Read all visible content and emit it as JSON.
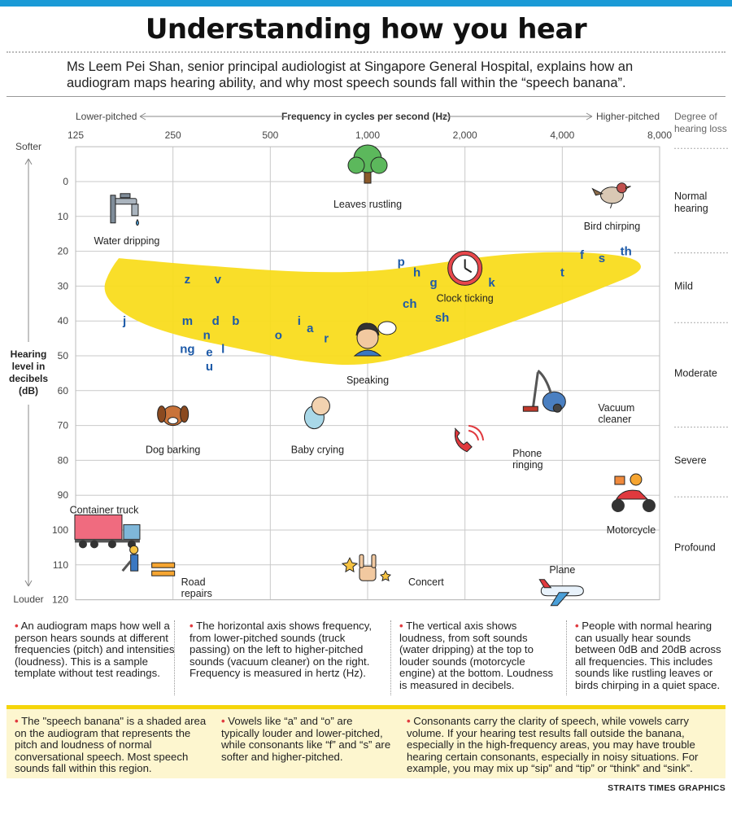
{
  "header": {
    "title": "Understanding how you hear",
    "intro": "Ms Leem Pei Shan, senior principal audiologist at Singapore General Hospital, explains how an audiogram maps hearing ability, and why most speech sounds fall within the “speech banana”."
  },
  "colors": {
    "accent_blue": "#1a9ad6",
    "banana_yellow": "#f9dc1e",
    "bullet_red": "#e0393e",
    "letter_blue": "#1d5aa8",
    "note_background": "#fdf6cf"
  },
  "chart_data": {
    "type": "scatter",
    "title": "Frequency in cycles per second (Hz)",
    "x_left_label": "Lower-pitched",
    "x_right_label": "Higher-pitched",
    "x_scale": "log",
    "x_ticks": [
      125,
      250,
      500,
      1000,
      2000,
      4000,
      8000
    ],
    "x_tick_labels": [
      "125",
      "250",
      "500",
      "1,000",
      "2,000",
      "4,000",
      "8,000"
    ],
    "y_label_lines": [
      "Hearing",
      "level in",
      "decibels",
      "(dB)"
    ],
    "y_top_label": "Softer",
    "y_bottom_label": "Louder",
    "y_ticks": [
      0,
      10,
      20,
      30,
      40,
      50,
      60,
      70,
      80,
      90,
      100,
      110,
      120
    ],
    "y_range": [
      -10,
      120
    ],
    "y_inverted": true,
    "grid": true,
    "degree_header": [
      "Degree of",
      "hearing loss"
    ],
    "degrees": [
      {
        "lines": [
          "Normal",
          "hearing"
        ],
        "at": 6
      },
      {
        "lines": [
          "Mild"
        ],
        "at": 30
      },
      {
        "lines": [
          "Moderate"
        ],
        "at": 55
      },
      {
        "lines": [
          "Severe"
        ],
        "at": 80
      },
      {
        "lines": [
          "Profound"
        ],
        "at": 105
      }
    ],
    "degree_boundaries": [
      -10,
      20,
      40,
      70,
      90
    ],
    "speech_banana": {
      "label": "speech banana",
      "upper_edge": [
        [
          170,
          22
        ],
        [
          300,
          24
        ],
        [
          600,
          26
        ],
        [
          1000,
          26
        ],
        [
          1500,
          24
        ],
        [
          2500,
          21
        ],
        [
          4000,
          20
        ],
        [
          6000,
          21
        ],
        [
          7000,
          23
        ]
      ],
      "lower_edge": [
        [
          7000,
          26
        ],
        [
          5500,
          30
        ],
        [
          4000,
          35
        ],
        [
          2500,
          42
        ],
        [
          1600,
          48
        ],
        [
          1000,
          53
        ],
        [
          650,
          52
        ],
        [
          400,
          48
        ],
        [
          250,
          44
        ],
        [
          180,
          39
        ],
        [
          150,
          32
        ],
        [
          160,
          25
        ]
      ]
    },
    "speech_sounds": [
      {
        "text": "z",
        "x": 277,
        "y": 28
      },
      {
        "text": "v",
        "x": 344,
        "y": 28
      },
      {
        "text": "j",
        "x": 177,
        "y": 40
      },
      {
        "text": "m",
        "x": 277,
        "y": 40
      },
      {
        "text": "d",
        "x": 339,
        "y": 40
      },
      {
        "text": "b",
        "x": 391,
        "y": 40
      },
      {
        "text": "n",
        "x": 318,
        "y": 44
      },
      {
        "text": "ng",
        "x": 277,
        "y": 48
      },
      {
        "text": "e",
        "x": 324,
        "y": 49
      },
      {
        "text": "l",
        "x": 357,
        "y": 48
      },
      {
        "text": "u",
        "x": 324,
        "y": 53
      },
      {
        "text": "o",
        "x": 530,
        "y": 44
      },
      {
        "text": "i",
        "x": 614,
        "y": 40
      },
      {
        "text": "a",
        "x": 664,
        "y": 42
      },
      {
        "text": "r",
        "x": 745,
        "y": 45
      },
      {
        "text": "p",
        "x": 1270,
        "y": 23
      },
      {
        "text": "h",
        "x": 1420,
        "y": 26
      },
      {
        "text": "g",
        "x": 1600,
        "y": 29
      },
      {
        "text": "ch",
        "x": 1350,
        "y": 35
      },
      {
        "text": "sh",
        "x": 1700,
        "y": 39
      },
      {
        "text": "k",
        "x": 2420,
        "y": 29
      },
      {
        "text": "t",
        "x": 4000,
        "y": 26
      },
      {
        "text": "f",
        "x": 4600,
        "y": 21
      },
      {
        "text": "s",
        "x": 5300,
        "y": 22
      },
      {
        "text": "th",
        "x": 6300,
        "y": 20
      }
    ],
    "sound_examples": [
      {
        "label": "Leaves rustling",
        "icon": "tree-icon",
        "x": 1000,
        "y": 0
      },
      {
        "label": "Water dripping",
        "icon": "tap-icon",
        "x": 180,
        "y": 10
      },
      {
        "label": "Bird chirping",
        "icon": "bird-icon",
        "x": 5700,
        "y": 10
      },
      {
        "label": "Clock ticking",
        "icon": "clock-icon",
        "x": 2000,
        "y": 30
      },
      {
        "label": "Speaking",
        "icon": "speaking-person-icon",
        "x": 1000,
        "y": 50
      },
      {
        "label": "Dog barking",
        "icon": "dog-icon",
        "x": 250,
        "y": 70
      },
      {
        "label": "Baby crying",
        "icon": "baby-icon",
        "x": 700,
        "y": 70
      },
      {
        "label": "Vacuum cleaner",
        "icon": "vacuum-icon",
        "x": 4000,
        "y": 65
      },
      {
        "label": "Phone ringing",
        "icon": "phone-icon",
        "x": 2200,
        "y": 78
      },
      {
        "label": "Container truck",
        "icon": "truck-icon",
        "x": 180,
        "y": 105
      },
      {
        "label": "Motorcycle",
        "icon": "motorcycle-icon",
        "x": 7000,
        "y": 100
      },
      {
        "label": "Road repairs",
        "icon": "road-repair-icon",
        "x": 250,
        "y": 115
      },
      {
        "label": "Concert",
        "icon": "rock-hand-icon",
        "x": 1000,
        "y": 115
      },
      {
        "label": "Plane",
        "icon": "plane-icon",
        "x": 4000,
        "y": 117
      }
    ]
  },
  "notes": [
    {
      "text": "An audiogram maps how well a person hears sounds at different frequencies (pitch) and intensities (loudness). This is a sample template without test readings."
    },
    {
      "text": "The horizontal axis shows frequency, from lower-pitched sounds (truck passing) on the left to higher-pitched sounds (vacuum cleaner) on the right. Frequency is measured in hertz (Hz)."
    },
    {
      "text": "The vertical axis shows loudness, from soft sounds (water dripping) at the top to louder sounds (motorcycle engine) at the bottom. Loudness is measured in decibels."
    },
    {
      "text": "People with normal hearing can usually hear sounds between 0dB and 20dB across all frequencies. This includes sounds like rustling leaves or birds chirping in a quiet space."
    }
  ],
  "highlight_notes": [
    {
      "text": "The \"speech banana\" is a shaded area on the audiogram that represents the pitch and loudness of normal conversational speech. Most speech sounds fall within this region."
    },
    {
      "text": "Vowels like “a” and “o” are typically louder and lower-pitched, while consonants like “f” and “s” are softer and higher-pitched."
    },
    {
      "text": "Consonants carry the clarity of speech, while vowels carry volume. If your hearing test results fall outside the banana, especially in the high-frequency areas, you may have trouble hearing certain consonants, especially in noisy situations. For example, you may mix up “sip” and “tip” or “think” and “sink”."
    }
  ],
  "credit": "STRAITS TIMES GRAPHICS"
}
